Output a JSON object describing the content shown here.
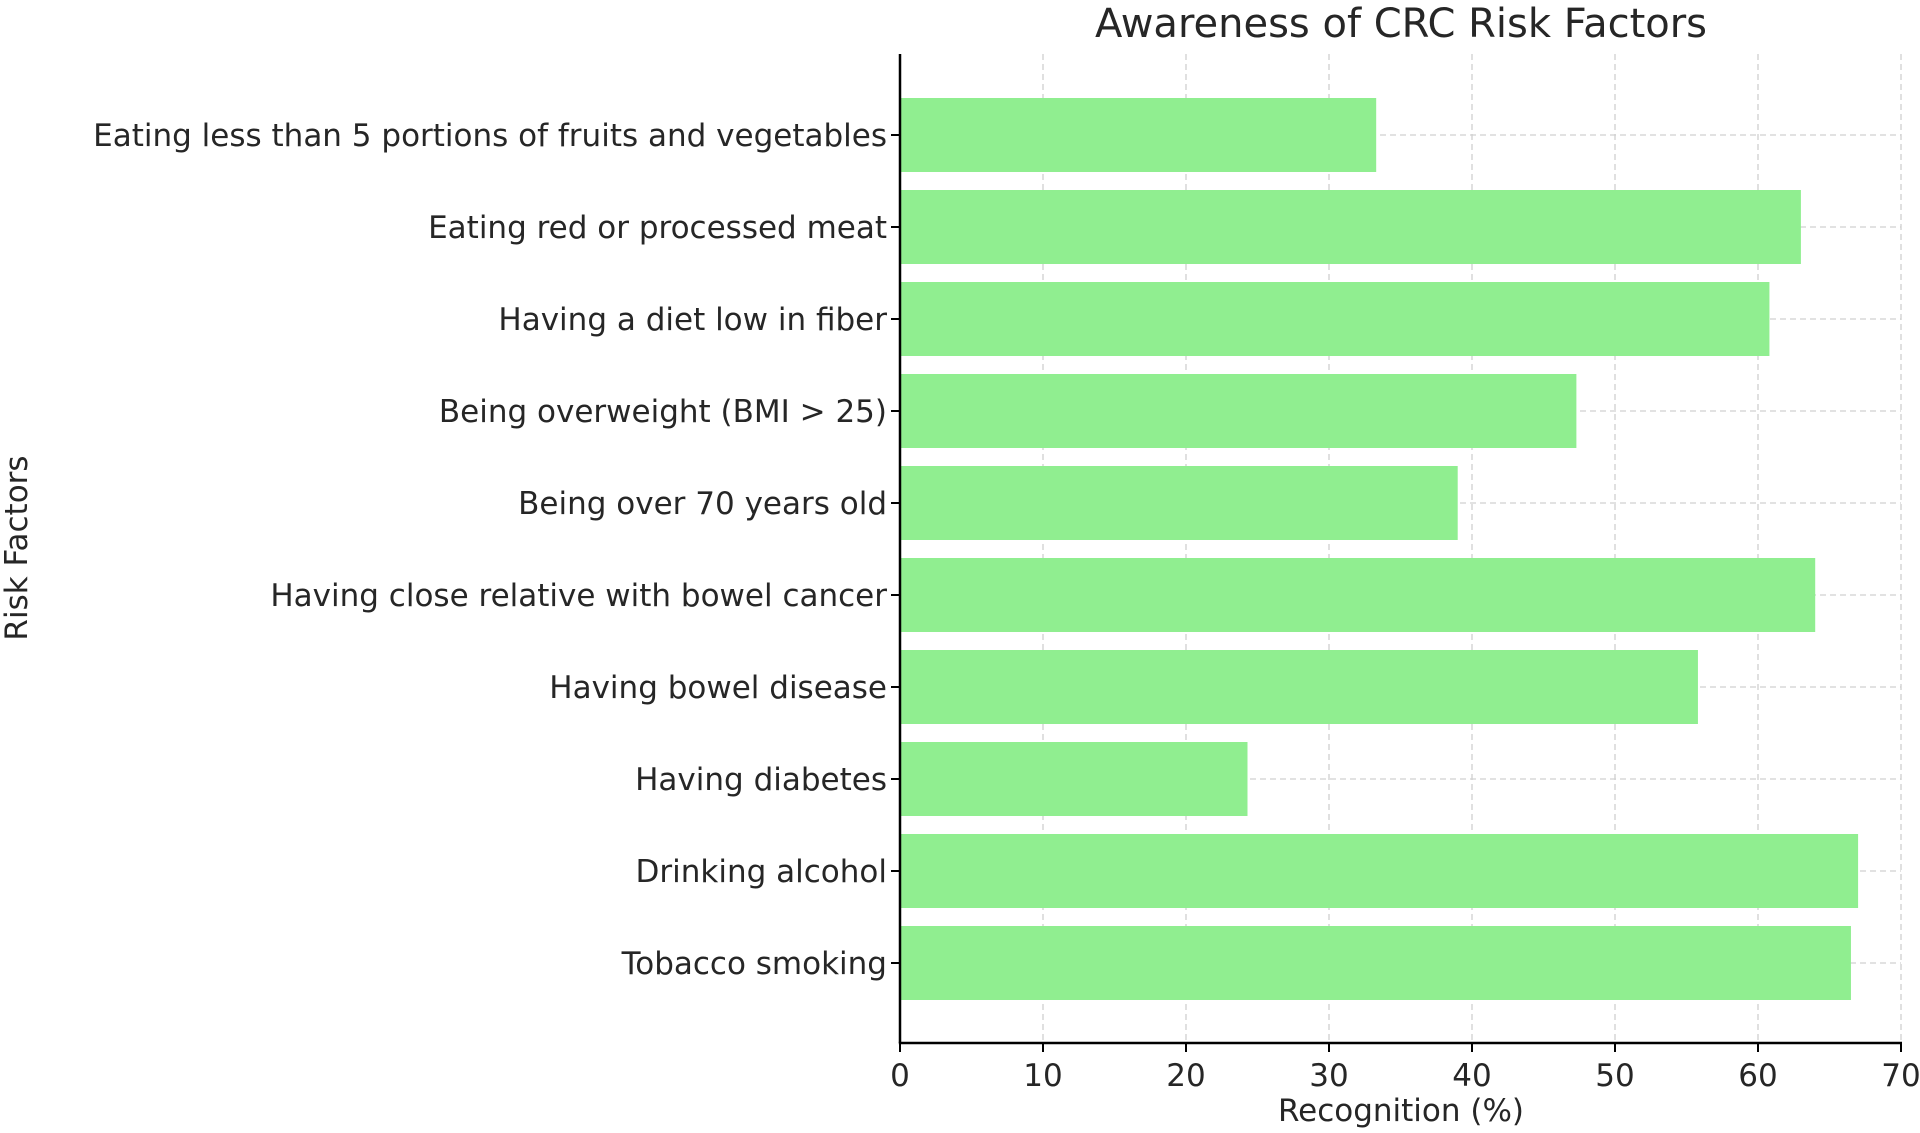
{
  "chart_data": {
    "type": "bar",
    "orientation": "horizontal",
    "title": "Awareness of CRC Risk Factors",
    "xlabel": "Recognition (%)",
    "ylabel": "Risk Factors",
    "categories": [
      "Eating less than 5 portions of fruits and vegetables",
      "Eating red or processed meat",
      "Having a diet low in fiber",
      "Being overweight (BMI > 25)",
      "Being over 70 years old",
      "Having close relative with bowel cancer",
      "Having bowel disease",
      "Having diabetes",
      "Drinking alcohol",
      "Tobacco smoking"
    ],
    "values": [
      33.3,
      63.0,
      60.8,
      47.3,
      39.0,
      64.0,
      55.8,
      24.3,
      67.0,
      66.5
    ],
    "xlim": [
      0,
      70
    ],
    "xticks": [
      "0",
      "10",
      "20",
      "30",
      "40",
      "50",
      "60",
      "70"
    ],
    "grid": true,
    "bar_color": "#90ee90",
    "grid_color": "#d0d0d0",
    "axis_color": "#000000",
    "text_color": "#262626"
  }
}
